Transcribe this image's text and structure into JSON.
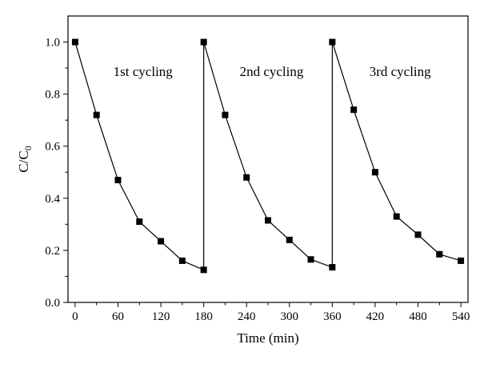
{
  "chart_data": {
    "type": "line",
    "title": "",
    "xlabel": "Time (min)",
    "ylabel_main": "C/C",
    "ylabel_sub": "0",
    "xlim": [
      -10,
      550
    ],
    "ylim": [
      0,
      1.1
    ],
    "xticks": [
      0,
      60,
      120,
      180,
      240,
      300,
      360,
      420,
      480,
      540
    ],
    "yticks": [
      0.0,
      0.2,
      0.4,
      0.6,
      0.8,
      1.0
    ],
    "ytick_labels": [
      "0.0",
      "0.2",
      "0.4",
      "0.6",
      "0.8",
      "1.0"
    ],
    "annotations": [
      {
        "text": "1st cycling",
        "x": 95,
        "y": 0.87
      },
      {
        "text": "2nd cycling",
        "x": 275,
        "y": 0.87
      },
      {
        "text": "3rd cycling",
        "x": 455,
        "y": 0.87
      }
    ],
    "series": [
      {
        "x": [
          0,
          30,
          60,
          90,
          120,
          150,
          180,
          180,
          210,
          240,
          270,
          300,
          330,
          360,
          360,
          390,
          420,
          450,
          480,
          510,
          540
        ],
        "y": [
          1.0,
          0.72,
          0.47,
          0.31,
          0.235,
          0.16,
          0.125,
          1.0,
          0.72,
          0.48,
          0.315,
          0.24,
          0.165,
          0.135,
          1.0,
          0.74,
          0.5,
          0.33,
          0.26,
          0.185,
          0.16
        ]
      }
    ],
    "grid": false,
    "marker": "square",
    "color": "#000000"
  }
}
